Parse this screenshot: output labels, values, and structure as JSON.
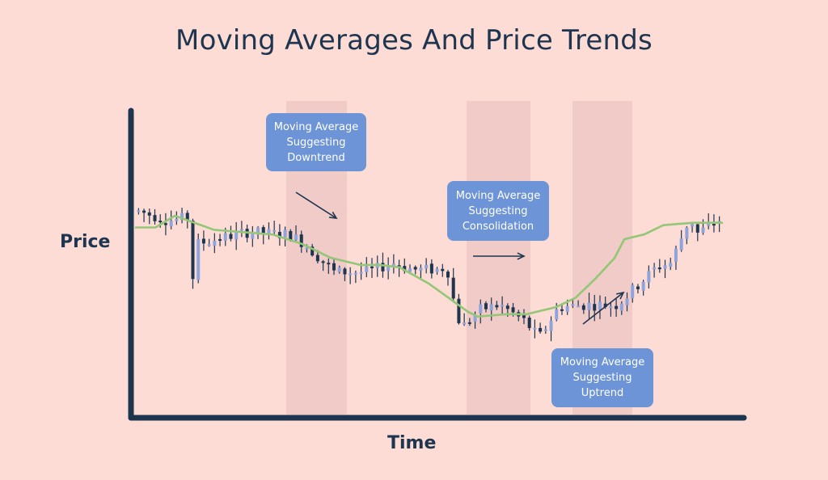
{
  "chart_data": {
    "type": "candlestick",
    "title": "Moving Averages And Price Trends",
    "xlabel": "Time",
    "ylabel": "Price",
    "tick_labels": false,
    "grid": false,
    "colors": {
      "background": "#fcdcd4",
      "axis": "#1e3550",
      "candle_wick": "#1e3550",
      "candle_down": "#1e3550",
      "candle_up": "#8fa4dc",
      "moving_average": "#93c677",
      "shaded_region": "#f0cbc7",
      "callout_box": "#6d94d6",
      "callout_text": "#ffffff",
      "arrow": "#1e3550"
    },
    "ylim": [
      0,
      100
    ],
    "num_candles": 108,
    "price_path": [
      [
        0,
        72
      ],
      [
        6,
        68
      ],
      [
        10,
        69
      ],
      [
        11,
        42
      ],
      [
        12,
        58
      ],
      [
        22,
        63
      ],
      [
        31,
        62
      ],
      [
        34,
        58
      ],
      [
        40,
        46
      ],
      [
        47,
        46
      ],
      [
        52,
        50
      ],
      [
        56,
        47
      ],
      [
        62,
        47
      ],
      [
        63,
        50
      ],
      [
        64,
        38
      ],
      [
        66,
        22
      ],
      [
        70,
        30
      ],
      [
        74,
        32
      ],
      [
        79,
        25
      ],
      [
        82,
        18
      ],
      [
        86,
        31
      ],
      [
        92,
        32
      ],
      [
        98,
        32
      ],
      [
        100,
        36
      ],
      [
        104,
        44
      ],
      [
        106,
        48
      ],
      [
        109,
        50
      ],
      [
        111,
        60
      ],
      [
        113,
        70
      ],
      [
        114,
        62
      ],
      [
        118,
        67
      ],
      [
        124,
        75
      ],
      [
        128,
        75
      ]
    ],
    "moving_average": [
      [
        0,
        65
      ],
      [
        4,
        65
      ],
      [
        8,
        70
      ],
      [
        16,
        64
      ],
      [
        28,
        62
      ],
      [
        34,
        58
      ],
      [
        40,
        52
      ],
      [
        46,
        49
      ],
      [
        50,
        49
      ],
      [
        54,
        48
      ],
      [
        60,
        41
      ],
      [
        64,
        35
      ],
      [
        68,
        29
      ],
      [
        70,
        27
      ],
      [
        76,
        28
      ],
      [
        80,
        28
      ],
      [
        82,
        29
      ],
      [
        86,
        31
      ],
      [
        90,
        35
      ],
      [
        94,
        43
      ],
      [
        98,
        52
      ],
      [
        100,
        60
      ],
      [
        104,
        62
      ],
      [
        108,
        66
      ],
      [
        114,
        67
      ],
      [
        120,
        67
      ]
    ],
    "regions": [
      {
        "label": "Downtrend",
        "x_from": 31,
        "x_to": 43
      },
      {
        "label": "Consolidation",
        "x_from": 67,
        "x_to": 80
      },
      {
        "label": "Uptrend",
        "x_from": 89,
        "x_to": 101
      }
    ],
    "annotations": [
      {
        "lines": [
          "Moving Average",
          "Suggesting",
          "Downtrend"
        ],
        "arrow": "down-right"
      },
      {
        "lines": [
          "Moving Average",
          "Suggesting",
          "Consolidation"
        ],
        "arrow": "right"
      },
      {
        "lines": [
          "Moving Average",
          "Suggesting",
          "Uptrend"
        ],
        "arrow": "up-right"
      }
    ]
  }
}
